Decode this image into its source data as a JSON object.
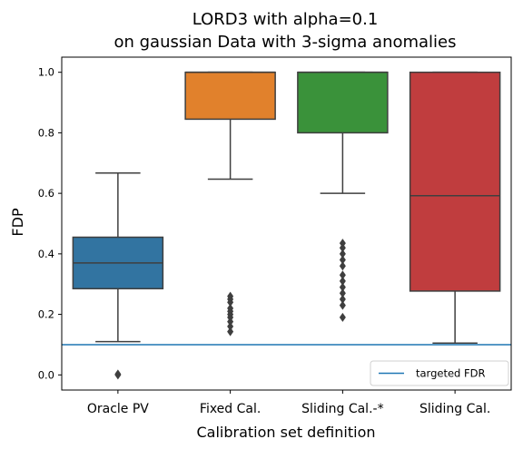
{
  "chart_data": {
    "type": "box",
    "title_lines": [
      "LORD3 with alpha=0.1",
      "on gaussian Data with 3-sigma anomalies"
    ],
    "xlabel": "Calibration set definition",
    "ylabel": "FDP",
    "ylim": [
      -0.05,
      1.05
    ],
    "yticks": [
      0.0,
      0.2,
      0.4,
      0.6,
      0.8,
      1.0
    ],
    "ytick_labels": [
      "0.0",
      "0.2",
      "0.4",
      "0.6",
      "0.8",
      "1.0"
    ],
    "grid": false,
    "categories": [
      "Oracle PV",
      "Fixed Cal.",
      "Sliding Cal.-*",
      "Sliding Cal."
    ],
    "boxes": [
      {
        "category": "Oracle PV",
        "color": "#3274a1",
        "whisker_low": 0.11,
        "q1": 0.285,
        "median": 0.37,
        "q3": 0.455,
        "whisker_high": 0.667,
        "outliers": [
          0.0,
          0.003
        ]
      },
      {
        "category": "Fixed Cal.",
        "color": "#e1812c",
        "whisker_low": 0.647,
        "q1": 0.845,
        "median": 1.0,
        "q3": 1.0,
        "whisker_high": 1.0,
        "outliers": [
          0.143,
          0.16,
          0.176,
          0.19,
          0.2,
          0.21,
          0.22,
          0.24,
          0.25,
          0.26
        ]
      },
      {
        "category": "Sliding Cal.-*",
        "color": "#3a923a",
        "whisker_low": 0.6,
        "q1": 0.8,
        "median": 1.0,
        "q3": 1.0,
        "whisker_high": 1.0,
        "outliers": [
          0.19,
          0.23,
          0.25,
          0.27,
          0.29,
          0.31,
          0.33,
          0.36,
          0.38,
          0.4,
          0.42,
          0.435
        ]
      },
      {
        "category": "Sliding Cal.",
        "color": "#c03d3e",
        "whisker_low": 0.105,
        "q1": 0.277,
        "median": 0.592,
        "q3": 1.0,
        "whisker_high": 1.0,
        "outliers": []
      }
    ],
    "reference_line": {
      "y": 0.1,
      "label": "targeted FDR",
      "color": "#1f77b4"
    },
    "legend": {
      "location": "lower right",
      "entries": [
        "targeted FDR"
      ]
    }
  }
}
